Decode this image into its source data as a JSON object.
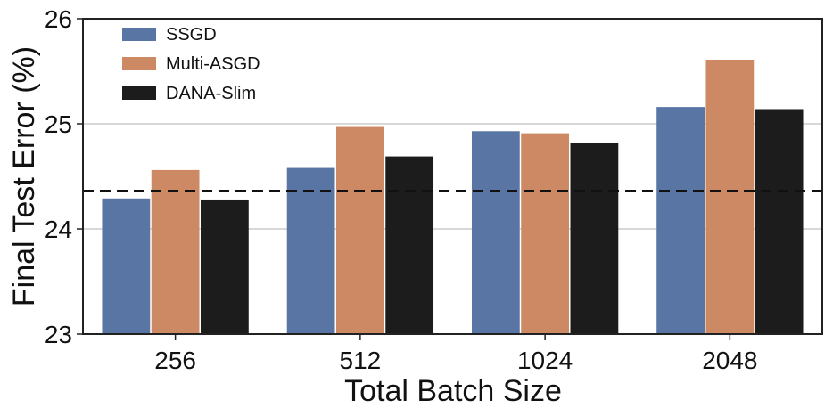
{
  "chart_data": {
    "type": "bar",
    "title": "",
    "xlabel": "Total Batch Size",
    "ylabel": "Final Test Error (%)",
    "categories": [
      "256",
      "512",
      "1024",
      "2048"
    ],
    "ylim": [
      23,
      26
    ],
    "yticks": [
      "23",
      "24",
      "25",
      "26"
    ],
    "grid": "horizontal",
    "legend_position": "top-left",
    "reference_line": {
      "y": 24.36,
      "style": "dashed"
    },
    "series": [
      {
        "name": "SSGD",
        "color": "#5975a4",
        "values": [
          24.29,
          24.58,
          24.93,
          25.16
        ]
      },
      {
        "name": "Multi-ASGD",
        "color": "#cc8963",
        "values": [
          24.56,
          24.97,
          24.91,
          25.61
        ]
      },
      {
        "name": "DANA-Slim",
        "color": "#1c1c1c",
        "values": [
          24.28,
          24.69,
          24.82,
          25.14
        ]
      }
    ]
  }
}
